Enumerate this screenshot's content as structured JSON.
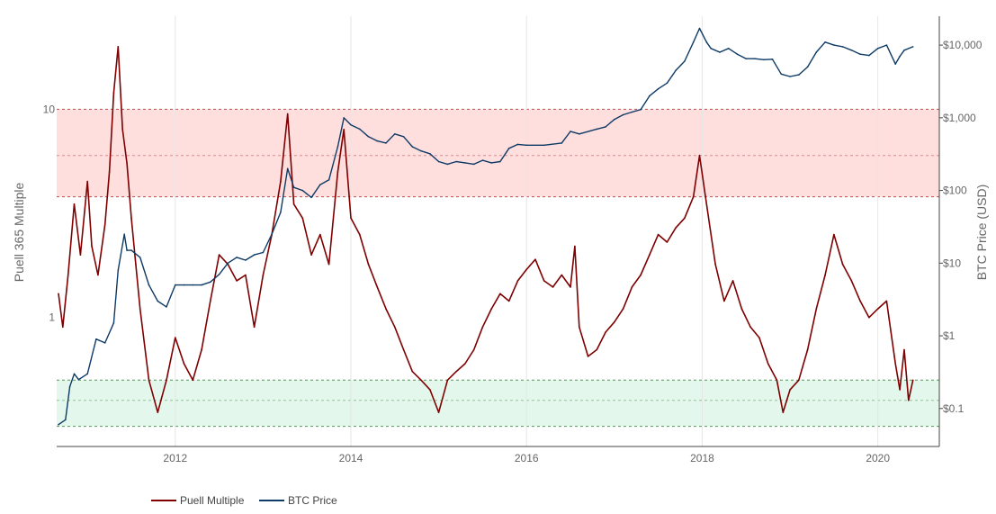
{
  "chart_data": {
    "type": "line",
    "title": "",
    "xlabel": "",
    "ylabel_left": "Puell 365 Multiple",
    "ylabel_right": "BTC Price (USD)",
    "x_ticks": [
      "2012",
      "2014",
      "2016",
      "2018",
      "2020"
    ],
    "x_tick_values": [
      2012,
      2014,
      2016,
      2018,
      2020
    ],
    "xlim": [
      2010.65,
      2020.7
    ],
    "y_left_scale": "log",
    "y_left_ticks": [
      "1",
      "10"
    ],
    "y_left_tick_values": [
      1,
      10
    ],
    "y_left_lim": [
      0.24,
      28
    ],
    "y_right_scale": "log",
    "y_right_ticks": [
      "$0.1",
      "$1",
      "$10",
      "$100",
      "$1,000",
      "$10,000"
    ],
    "y_right_tick_values": [
      0.1,
      1,
      10,
      100,
      1000,
      10000
    ],
    "y_right_lim": [
      0.03,
      25000
    ],
    "bands": [
      {
        "name": "overvalued",
        "color": "#ffdede",
        "line_color": "#cc3333",
        "lower": 3.8,
        "mid": 6.0,
        "upper": 10
      }
    ],
    "bands_low": [
      {
        "name": "undervalued",
        "color": "#e3f7ec",
        "line_color": "#339933",
        "lower": 0.3,
        "mid": 0.4,
        "upper": 0.5
      }
    ],
    "grid": "vertical",
    "legend_position": "bottom-left",
    "series": [
      {
        "name": "Puell Multiple",
        "color": "#7f0000",
        "x": [
          2010.67,
          2010.72,
          2010.78,
          2010.85,
          2010.92,
          2011.0,
          2011.05,
          2011.12,
          2011.2,
          2011.25,
          2011.3,
          2011.35,
          2011.4,
          2011.45,
          2011.5,
          2011.55,
          2011.6,
          2011.7,
          2011.8,
          2011.9,
          2012.0,
          2012.1,
          2012.2,
          2012.3,
          2012.4,
          2012.5,
          2012.6,
          2012.7,
          2012.8,
          2012.9,
          2013.0,
          2013.1,
          2013.2,
          2013.28,
          2013.35,
          2013.45,
          2013.55,
          2013.65,
          2013.75,
          2013.85,
          2013.92,
          2014.0,
          2014.1,
          2014.2,
          2014.3,
          2014.4,
          2014.5,
          2014.6,
          2014.7,
          2014.8,
          2014.9,
          2015.0,
          2015.1,
          2015.2,
          2015.3,
          2015.4,
          2015.5,
          2015.6,
          2015.7,
          2015.8,
          2015.9,
          2016.0,
          2016.1,
          2016.2,
          2016.3,
          2016.4,
          2016.5,
          2016.55,
          2016.6,
          2016.7,
          2016.8,
          2016.9,
          2017.0,
          2017.1,
          2017.2,
          2017.3,
          2017.4,
          2017.5,
          2017.6,
          2017.7,
          2017.8,
          2017.9,
          2017.97,
          2018.05,
          2018.15,
          2018.25,
          2018.35,
          2018.45,
          2018.55,
          2018.65,
          2018.75,
          2018.85,
          2018.92,
          2019.0,
          2019.1,
          2019.2,
          2019.3,
          2019.4,
          2019.5,
          2019.6,
          2019.7,
          2019.8,
          2019.9,
          2020.0,
          2020.1,
          2020.2,
          2020.25,
          2020.3,
          2020.35,
          2020.4
        ],
        "values": [
          1.3,
          0.9,
          1.6,
          3.5,
          2.0,
          4.5,
          2.2,
          1.6,
          2.8,
          5.0,
          12.0,
          20.0,
          8.0,
          5.5,
          3.0,
          1.8,
          1.1,
          0.5,
          0.35,
          0.5,
          0.8,
          0.6,
          0.5,
          0.7,
          1.2,
          2.0,
          1.8,
          1.5,
          1.6,
          0.9,
          1.6,
          2.5,
          4.5,
          9.5,
          3.5,
          3.0,
          2.0,
          2.5,
          1.8,
          5.0,
          8.0,
          3.0,
          2.5,
          1.8,
          1.4,
          1.1,
          0.9,
          0.7,
          0.55,
          0.5,
          0.45,
          0.35,
          0.5,
          0.55,
          0.6,
          0.7,
          0.9,
          1.1,
          1.3,
          1.2,
          1.5,
          1.7,
          1.9,
          1.5,
          1.4,
          1.6,
          1.4,
          2.2,
          0.9,
          0.65,
          0.7,
          0.85,
          0.95,
          1.1,
          1.4,
          1.6,
          2.0,
          2.5,
          2.3,
          2.7,
          3.0,
          3.8,
          6.0,
          3.5,
          1.8,
          1.2,
          1.5,
          1.1,
          0.9,
          0.8,
          0.6,
          0.5,
          0.35,
          0.45,
          0.5,
          0.7,
          1.1,
          1.6,
          2.5,
          1.8,
          1.5,
          1.2,
          1.0,
          1.1,
          1.2,
          0.6,
          0.45,
          0.7,
          0.4,
          0.5
        ]
      },
      {
        "name": "BTC Price",
        "color": "#0e3a66",
        "x": [
          2010.67,
          2010.75,
          2010.8,
          2010.85,
          2010.9,
          2011.0,
          2011.1,
          2011.2,
          2011.3,
          2011.35,
          2011.42,
          2011.45,
          2011.5,
          2011.6,
          2011.7,
          2011.8,
          2011.9,
          2012.0,
          2012.1,
          2012.2,
          2012.3,
          2012.4,
          2012.5,
          2012.6,
          2012.7,
          2012.8,
          2012.9,
          2013.0,
          2013.1,
          2013.2,
          2013.28,
          2013.35,
          2013.45,
          2013.55,
          2013.65,
          2013.75,
          2013.85,
          2013.92,
          2014.0,
          2014.1,
          2014.2,
          2014.3,
          2014.4,
          2014.5,
          2014.6,
          2014.7,
          2014.8,
          2014.9,
          2015.0,
          2015.1,
          2015.2,
          2015.3,
          2015.4,
          2015.5,
          2015.6,
          2015.7,
          2015.8,
          2015.9,
          2016.0,
          2016.2,
          2016.4,
          2016.5,
          2016.6,
          2016.8,
          2016.9,
          2017.0,
          2017.1,
          2017.2,
          2017.3,
          2017.4,
          2017.5,
          2017.6,
          2017.7,
          2017.8,
          2017.9,
          2017.97,
          2018.05,
          2018.1,
          2018.2,
          2018.3,
          2018.4,
          2018.5,
          2018.6,
          2018.7,
          2018.8,
          2018.9,
          2019.0,
          2019.1,
          2019.2,
          2019.3,
          2019.4,
          2019.5,
          2019.6,
          2019.7,
          2019.8,
          2019.9,
          2020.0,
          2020.1,
          2020.2,
          2020.25,
          2020.3,
          2020.4
        ],
        "values": [
          0.06,
          0.07,
          0.2,
          0.3,
          0.25,
          0.3,
          0.9,
          0.8,
          1.5,
          8.0,
          25.0,
          15.0,
          15.0,
          12.0,
          5.0,
          3.0,
          2.5,
          5.0,
          5.0,
          5.0,
          5.0,
          5.5,
          7.0,
          10.0,
          12.0,
          11.0,
          13.0,
          14.0,
          25.0,
          50.0,
          200.0,
          110.0,
          100.0,
          80.0,
          120.0,
          140.0,
          400.0,
          1000.0,
          800.0,
          700.0,
          550.0,
          480.0,
          450.0,
          600.0,
          550.0,
          400.0,
          350.0,
          320.0,
          250.0,
          230.0,
          250.0,
          240.0,
          230.0,
          260.0,
          240.0,
          250.0,
          380.0,
          430.0,
          420.0,
          420.0,
          450.0,
          650.0,
          600.0,
          700.0,
          750.0,
          950.0,
          1100.0,
          1200.0,
          1300.0,
          2000.0,
          2500.0,
          3000.0,
          4500.0,
          6000.0,
          11000.0,
          17000.0,
          11000.0,
          9000.0,
          8000.0,
          9000.0,
          7500.0,
          6500.0,
          6500.0,
          6300.0,
          6400.0,
          4000.0,
          3700.0,
          3900.0,
          5000.0,
          8000.0,
          11000.0,
          10000.0,
          9500.0,
          8500.0,
          7500.0,
          7200.0,
          9000.0,
          10000.0,
          5500.0,
          7000.0,
          8500.0,
          9500.0
        ]
      }
    ]
  },
  "legend": {
    "items": [
      {
        "label": "Puell Multiple",
        "color": "#7f0000"
      },
      {
        "label": "BTC Price",
        "color": "#0e3a66"
      }
    ]
  }
}
